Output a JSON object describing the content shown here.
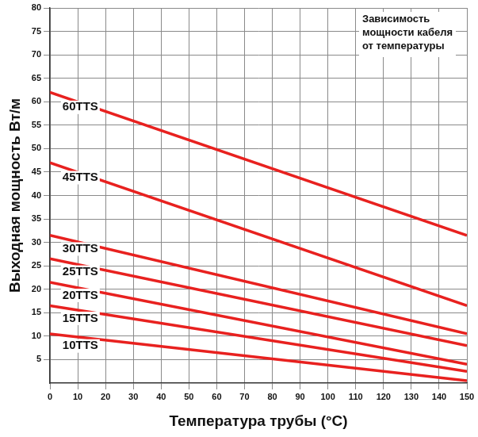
{
  "chart_data": {
    "type": "line",
    "annotation": [
      "Зависимость",
      "мощности кабеля",
      "от температуры"
    ],
    "x_label": "Температура трубы (°C)",
    "y_label": "Выходная мощность Вт/м",
    "xlim": [
      0,
      150
    ],
    "xticks": [
      0,
      10,
      20,
      30,
      40,
      50,
      60,
      70,
      80,
      90,
      100,
      110,
      120,
      130,
      140,
      150
    ],
    "ylim": [
      0,
      80
    ],
    "yticks": [
      5,
      10,
      15,
      20,
      25,
      30,
      35,
      40,
      45,
      50,
      55,
      60,
      65,
      70,
      75,
      80
    ],
    "grid": true,
    "series": [
      {
        "name": "60TTS",
        "color": "#e8211f",
        "x": [
          0,
          150
        ],
        "values": [
          62,
          31.5
        ]
      },
      {
        "name": "45TTS",
        "color": "#e8211f",
        "x": [
          0,
          150
        ],
        "values": [
          47,
          16.5
        ]
      },
      {
        "name": "30TTS",
        "color": "#e8211f",
        "x": [
          0,
          150
        ],
        "values": [
          31.5,
          10.5
        ]
      },
      {
        "name": "25TTS",
        "color": "#e8211f",
        "x": [
          0,
          150
        ],
        "values": [
          26.5,
          8
        ]
      },
      {
        "name": "20TTS",
        "color": "#e8211f",
        "x": [
          0,
          150
        ],
        "values": [
          21.5,
          4
        ]
      },
      {
        "name": "15TTS",
        "color": "#e8211f",
        "x": [
          0,
          150
        ],
        "values": [
          16.5,
          2.5
        ]
      },
      {
        "name": "10TTS",
        "color": "#e8211f",
        "x": [
          0,
          150
        ],
        "values": [
          10.5,
          0.5
        ]
      }
    ]
  }
}
